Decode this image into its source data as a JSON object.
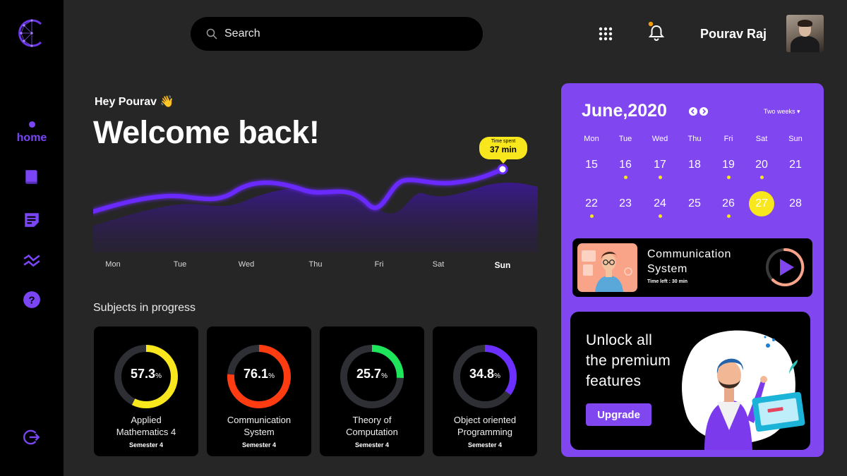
{
  "sidebar": {
    "logo_letter": "C",
    "home_label": "home",
    "icons": [
      "book-icon",
      "notes-icon",
      "analytics-icon",
      "help-icon",
      "logout-icon"
    ]
  },
  "header": {
    "search_placeholder": "Search",
    "user_name": "Pourav Raj"
  },
  "greeting": {
    "hello": "Hey Pourav 👋",
    "title": "Welcome back!"
  },
  "activity_chart": {
    "days": [
      "Mon",
      "Tue",
      "Wed",
      "Thu",
      "Fri",
      "Sat",
      "Sun"
    ],
    "active_day": "Sun",
    "tooltip_label": "Time spent",
    "tooltip_value": "37 min"
  },
  "subjects": {
    "title": "Subjects in progress",
    "items": [
      {
        "value": "57.3",
        "unit": "%",
        "progress": 0.573,
        "name_line1": "Applied",
        "name_line2": "Mathematics 4",
        "semester": "Semester 4",
        "color": "#f8e71c"
      },
      {
        "value": "76.1",
        "unit": "%",
        "progress": 0.761,
        "name_line1": "Communication",
        "name_line2": "System",
        "semester": "Semester 4",
        "color": "#ff3b12"
      },
      {
        "value": "25.7",
        "unit": "%",
        "progress": 0.257,
        "name_line1": "Theory of",
        "name_line2": "Computation",
        "semester": "Semester 4",
        "color": "#1de65a"
      },
      {
        "value": "34.8",
        "unit": "%",
        "progress": 0.348,
        "name_line1": "Object oriented",
        "name_line2": "Programming",
        "semester": "Semester 4",
        "color": "#6b30ff"
      }
    ]
  },
  "calendar": {
    "title": "June,2020",
    "range_label": "Two weeks ▾",
    "weekdays": [
      "Mon",
      "Tue",
      "Wed",
      "Thu",
      "Fri",
      "Sat",
      "Sun"
    ],
    "week1": [
      "15",
      "16",
      "17",
      "18",
      "19",
      "20",
      "21"
    ],
    "week2": [
      "22",
      "23",
      "24",
      "25",
      "26",
      "27",
      "28"
    ],
    "today": "27",
    "dot_days": [
      "16",
      "17",
      "19",
      "20",
      "22",
      "24",
      "26"
    ]
  },
  "current_course": {
    "title_line1": "Communication",
    "title_line2": "System",
    "time_left": "Time left : 30 min"
  },
  "promo": {
    "line1": "Unlock all",
    "line2": "the premium",
    "line3": "features",
    "button": "Upgrade"
  },
  "colors": {
    "accent": "#8046ef",
    "highlight": "#f8e71c",
    "background": "#262626"
  }
}
